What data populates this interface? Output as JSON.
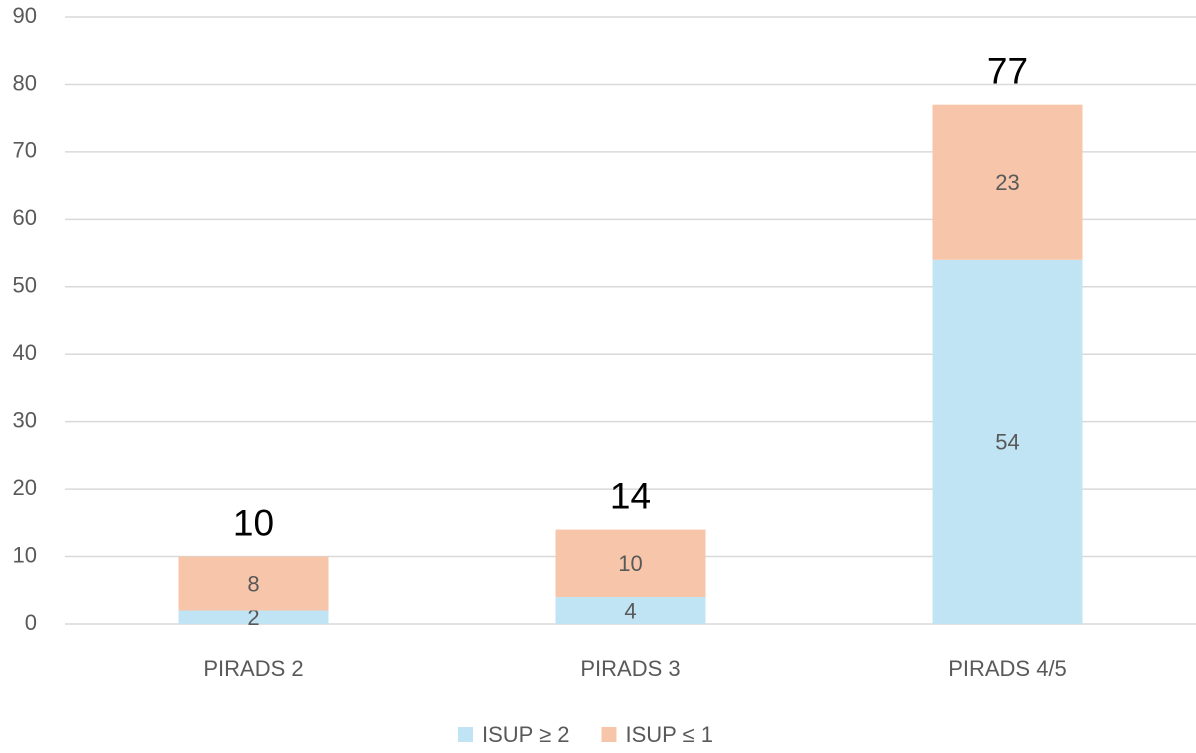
{
  "chart_data": {
    "type": "stacked_bar",
    "categories": [
      "PIRADS 2",
      "PIRADS 3",
      "PIRADS 4/5"
    ],
    "series": [
      {
        "name": "ISUP ≥ 2",
        "color": "#c1e4f5",
        "values": [
          2,
          4,
          54
        ]
      },
      {
        "name": "ISUP ≤ 1",
        "color": "#f7c6aa",
        "values": [
          8,
          10,
          23
        ]
      }
    ],
    "total_labels": [
      10,
      14,
      77
    ],
    "ylim": [
      0,
      90
    ],
    "yticks": [
      0,
      10,
      20,
      30,
      40,
      50,
      60,
      70,
      80,
      90
    ],
    "grid": true,
    "legend": "bottom"
  }
}
